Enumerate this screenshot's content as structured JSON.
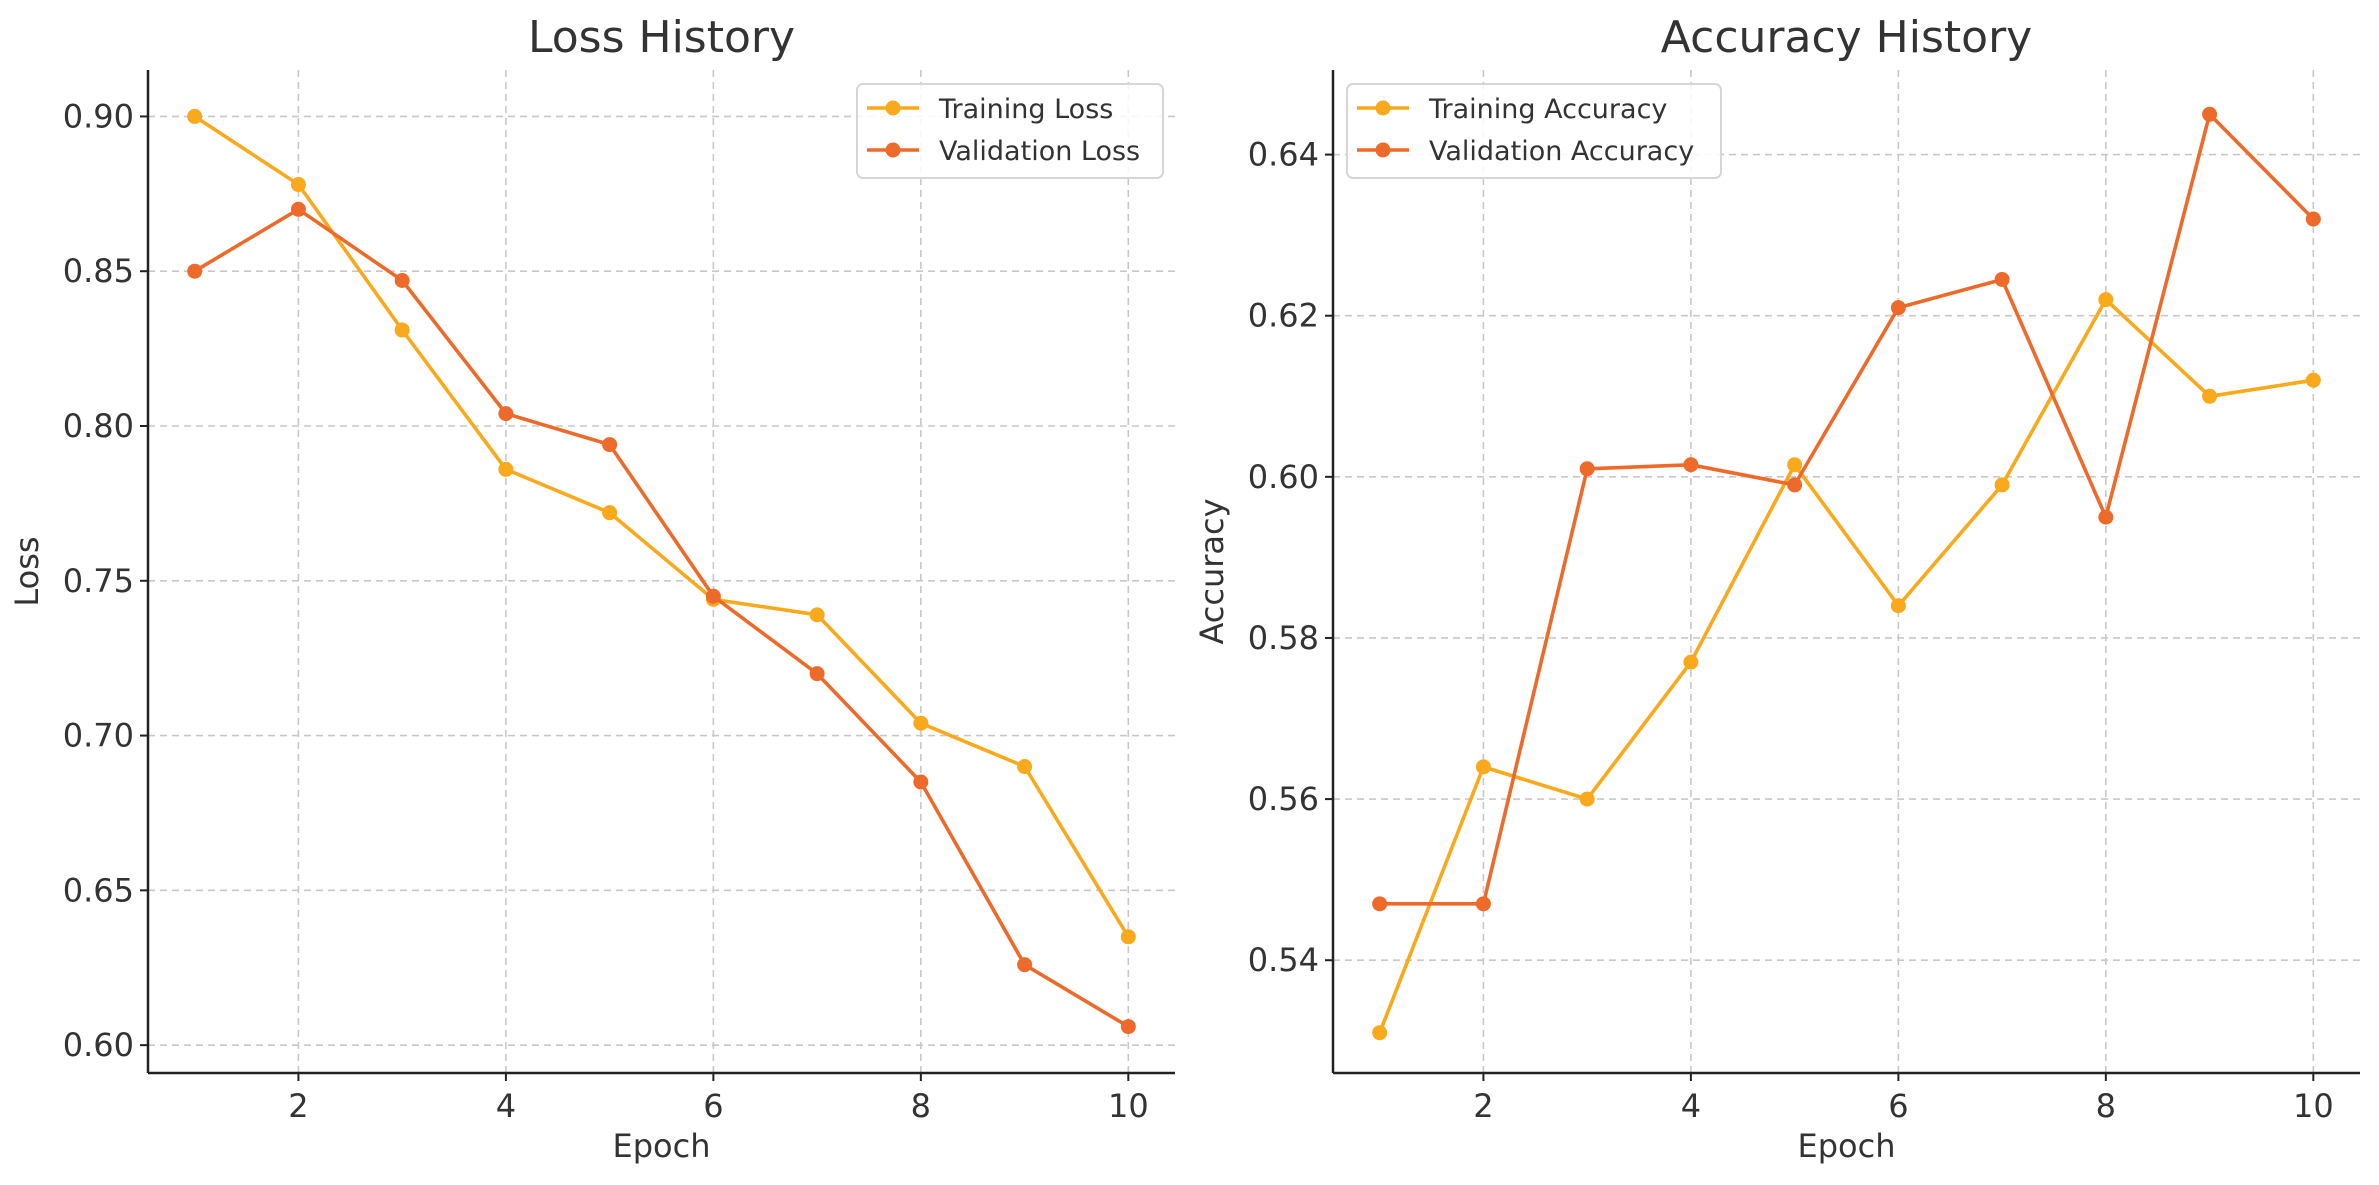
{
  "chart_data": [
    {
      "type": "line",
      "title": "Loss History",
      "xlabel": "Epoch",
      "ylabel": "Loss",
      "x": [
        1,
        2,
        3,
        4,
        5,
        6,
        7,
        8,
        9,
        10
      ],
      "xlim": [
        0.55,
        10.45
      ],
      "ylim": [
        0.591,
        0.915
      ],
      "xticks": [
        2,
        4,
        6,
        8,
        10
      ],
      "yticks": [
        0.6,
        0.65,
        0.7,
        0.75,
        0.8,
        0.85,
        0.9
      ],
      "ytick_format": 2,
      "grid": true,
      "legend_position": "top-right",
      "series": [
        {
          "name": "Training Loss",
          "color": "#F9A91B",
          "values": [
            0.9,
            0.878,
            0.831,
            0.786,
            0.772,
            0.744,
            0.739,
            0.704,
            0.69,
            0.635
          ]
        },
        {
          "name": "Validation Loss",
          "color": "#EE6A2A",
          "values": [
            0.85,
            0.87,
            0.847,
            0.804,
            0.794,
            0.745,
            0.72,
            0.685,
            0.626,
            0.606
          ]
        }
      ]
    },
    {
      "type": "line",
      "title": "Accuracy History",
      "xlabel": "Epoch",
      "ylabel": "Accuracy",
      "x": [
        1,
        2,
        3,
        4,
        5,
        6,
        7,
        8,
        9,
        10
      ],
      "xlim": [
        0.55,
        10.45
      ],
      "ylim": [
        0.526,
        0.6505
      ],
      "xticks": [
        2,
        4,
        6,
        8,
        10
      ],
      "yticks": [
        0.54,
        0.56,
        0.58,
        0.6,
        0.62,
        0.64
      ],
      "ytick_format": 2,
      "grid": true,
      "legend_position": "top-left",
      "series": [
        {
          "name": "Training Accuracy",
          "color": "#F9A91B",
          "values": [
            0.531,
            0.564,
            0.56,
            0.577,
            0.6015,
            0.584,
            0.599,
            0.622,
            0.61,
            0.612
          ]
        },
        {
          "name": "Validation Accuracy",
          "color": "#EE6A2A",
          "values": [
            0.547,
            0.547,
            0.601,
            0.6015,
            0.599,
            0.621,
            0.6245,
            0.595,
            0.645,
            0.632
          ]
        }
      ]
    }
  ]
}
